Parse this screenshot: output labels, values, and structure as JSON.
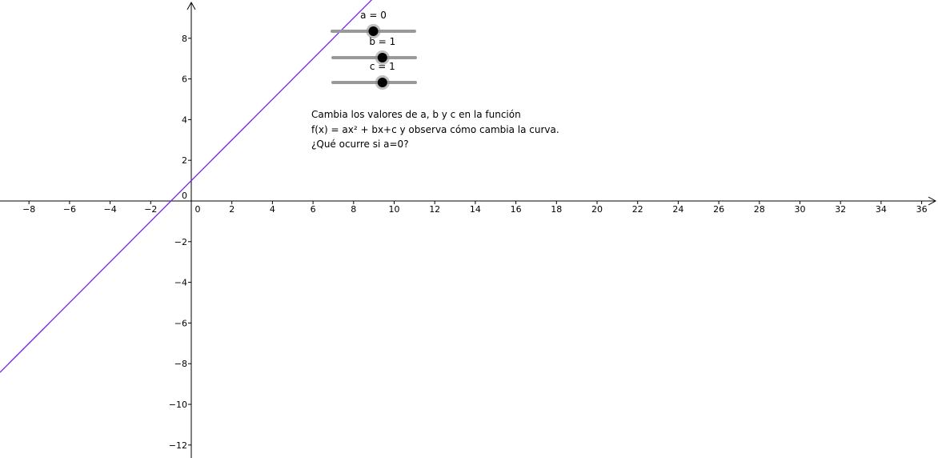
{
  "app": {
    "name": "GeoGebra graphics view"
  },
  "axes": {
    "x_ticks": [
      "−8",
      "−6",
      "−4",
      "−2",
      "0",
      "2",
      "4",
      "6",
      "8",
      "10",
      "12",
      "14",
      "16",
      "18",
      "20",
      "22",
      "24",
      "26",
      "28",
      "30",
      "32",
      "34",
      "36"
    ],
    "y_ticks": [
      "8",
      "6",
      "4",
      "2",
      "0",
      "−2",
      "−4",
      "−6",
      "−8",
      "−10",
      "−12"
    ],
    "x_range": [
      -9.4,
      36.7
    ],
    "y_range": [
      -12.7,
      9.8
    ],
    "grid": false
  },
  "function": {
    "expression": "f(x) = ax² + bx + c",
    "color": "#7b1fe6",
    "a": 0,
    "b": 1,
    "c": 1
  },
  "sliders": [
    {
      "id": "a",
      "label": "a = 0",
      "min": -5,
      "max": 5,
      "value": 0,
      "fraction": 0.5
    },
    {
      "id": "b",
      "label": "b = 1",
      "min": -5,
      "max": 5,
      "value": 1,
      "fraction": 0.6
    },
    {
      "id": "c",
      "label": "c = 1",
      "min": -5,
      "max": 5,
      "value": 1,
      "fraction": 0.6
    }
  ],
  "instructions": {
    "line1": "Cambia los valores de a, b y c  en la función",
    "line2": "f(x) = ax² + bx+c y observa cómo cambia la curva.",
    "line3": "¿Qué ocurre si a=0?"
  },
  "colors": {
    "curve": "#7b1fe6",
    "slider_track": "#999999",
    "slider_knob": "#000000",
    "slider_halo": "#8a8a8a",
    "axis": "#000000"
  }
}
